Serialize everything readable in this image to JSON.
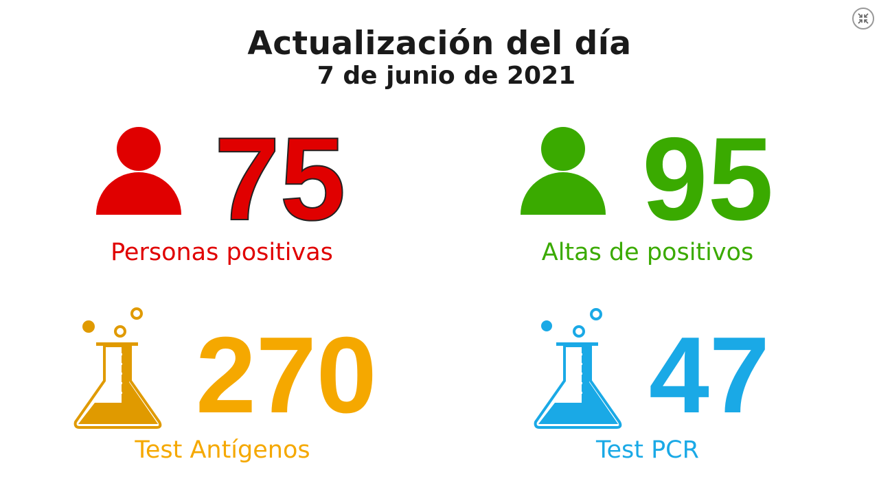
{
  "header": {
    "title": "Actualización del día",
    "date": "7 de junio de 2021"
  },
  "stats": [
    {
      "value": "75",
      "label": "Personas positivas",
      "color": "#e00000",
      "icon": "person-icon"
    },
    {
      "value": "95",
      "label": "Altas de positivos",
      "color": "#3aaa00",
      "icon": "person-icon"
    },
    {
      "value": "270",
      "label": "Test Antígenos",
      "color": "#f5a800",
      "icon": "flask-icon"
    },
    {
      "value": "47",
      "label": "Test PCR",
      "color": "#1aa9e6",
      "icon": "flask-icon"
    }
  ],
  "controls": {
    "exit_fullscreen_icon": "collapse-arrows-icon"
  }
}
